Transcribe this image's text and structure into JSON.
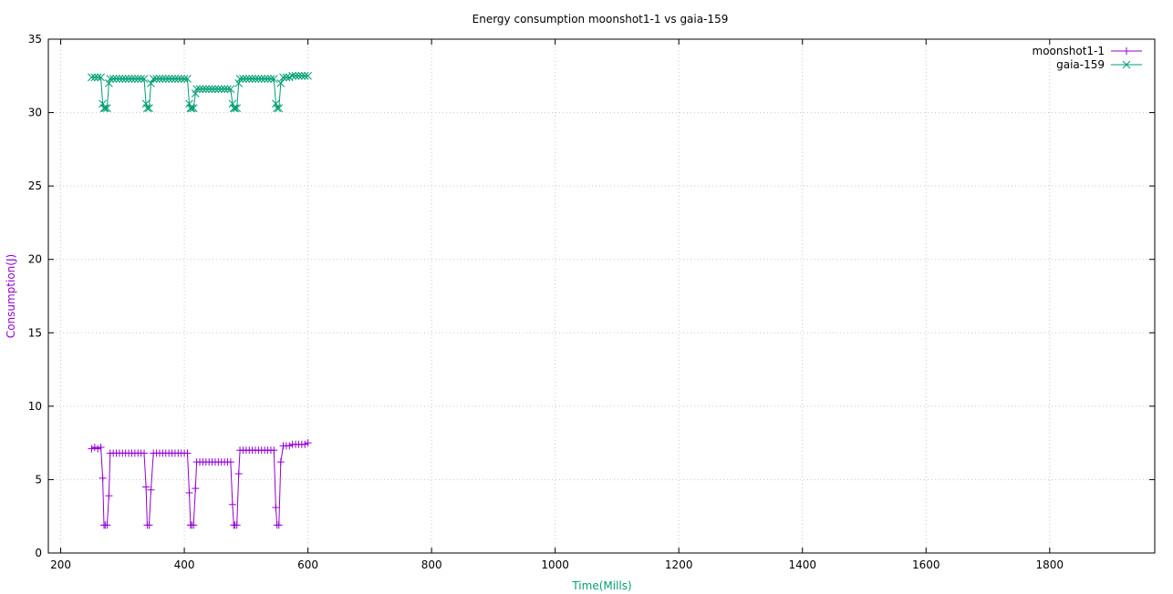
{
  "chart_data": {
    "type": "line",
    "title": "Energy consumption moonshot1-1 vs gaia-159",
    "xlabel": "Time(Mills)",
    "ylabel": "Consumption(J)",
    "xlim": [
      180,
      1970
    ],
    "ylim": [
      0,
      35
    ],
    "x_ticks": [
      200,
      400,
      600,
      800,
      1000,
      1200,
      1400,
      1600,
      1800
    ],
    "y_ticks": [
      0,
      5,
      10,
      15,
      20,
      25,
      30,
      35
    ],
    "grid": true,
    "legend_position": "top-right",
    "xlabel_color": "#009e73",
    "ylabel_color": "#9400d3",
    "series": [
      {
        "name": "moonshot1-1",
        "color": "#9400d3",
        "marker": "plus",
        "x": [
          250,
          255,
          260,
          265,
          268,
          270,
          272,
          275,
          278,
          280,
          285,
          290,
          295,
          300,
          305,
          310,
          315,
          320,
          325,
          330,
          335,
          338,
          340,
          343,
          346,
          350,
          355,
          360,
          365,
          370,
          375,
          380,
          385,
          390,
          395,
          400,
          405,
          408,
          410,
          412,
          415,
          418,
          420,
          425,
          430,
          435,
          440,
          445,
          450,
          455,
          460,
          465,
          470,
          475,
          478,
          480,
          482,
          485,
          488,
          490,
          495,
          500,
          505,
          510,
          515,
          520,
          525,
          530,
          535,
          540,
          545,
          548,
          550,
          553,
          556,
          560,
          565,
          570,
          575,
          580,
          585,
          590,
          595,
          600
        ],
        "y": [
          7.1,
          7.2,
          7.1,
          7.2,
          5.1,
          1.9,
          1.9,
          1.9,
          3.9,
          6.8,
          6.8,
          6.8,
          6.8,
          6.8,
          6.8,
          6.8,
          6.8,
          6.8,
          6.8,
          6.8,
          6.8,
          4.5,
          1.9,
          1.9,
          4.3,
          6.8,
          6.8,
          6.8,
          6.8,
          6.8,
          6.8,
          6.8,
          6.8,
          6.8,
          6.8,
          6.8,
          6.8,
          4.1,
          1.9,
          1.9,
          1.9,
          4.4,
          6.2,
          6.2,
          6.2,
          6.2,
          6.2,
          6.2,
          6.2,
          6.2,
          6.2,
          6.2,
          6.2,
          6.2,
          3.3,
          1.9,
          1.9,
          1.9,
          5.4,
          7.0,
          7.0,
          7.0,
          7.0,
          7.0,
          7.0,
          7.0,
          7.0,
          7.0,
          7.0,
          7.0,
          7.0,
          3.1,
          1.9,
          1.9,
          6.2,
          7.3,
          7.3,
          7.3,
          7.4,
          7.4,
          7.4,
          7.4,
          7.4,
          7.5
        ]
      },
      {
        "name": "gaia-159",
        "color": "#009e73",
        "marker": "x",
        "x": [
          250,
          255,
          260,
          265,
          268,
          270,
          272,
          275,
          278,
          280,
          285,
          290,
          295,
          300,
          305,
          310,
          315,
          320,
          325,
          330,
          335,
          338,
          340,
          343,
          346,
          350,
          355,
          360,
          365,
          370,
          375,
          380,
          385,
          390,
          395,
          400,
          405,
          408,
          410,
          412,
          415,
          418,
          420,
          425,
          430,
          435,
          440,
          445,
          450,
          455,
          460,
          465,
          470,
          475,
          478,
          480,
          482,
          485,
          488,
          490,
          495,
          500,
          505,
          510,
          515,
          520,
          525,
          530,
          535,
          540,
          545,
          548,
          550,
          553,
          556,
          560,
          565,
          570,
          575,
          580,
          585,
          590,
          595,
          600
        ],
        "y": [
          32.4,
          32.4,
          32.4,
          32.4,
          30.6,
          30.3,
          30.3,
          30.3,
          32.0,
          32.3,
          32.3,
          32.3,
          32.3,
          32.3,
          32.3,
          32.3,
          32.3,
          32.3,
          32.3,
          32.3,
          32.3,
          30.6,
          30.3,
          30.3,
          32.0,
          32.3,
          32.3,
          32.3,
          32.3,
          32.3,
          32.3,
          32.3,
          32.3,
          32.3,
          32.3,
          32.3,
          32.3,
          30.6,
          30.3,
          30.3,
          30.3,
          31.3,
          31.6,
          31.6,
          31.6,
          31.6,
          31.6,
          31.6,
          31.6,
          31.6,
          31.6,
          31.6,
          31.6,
          31.6,
          30.6,
          30.3,
          30.3,
          30.3,
          32.0,
          32.3,
          32.3,
          32.3,
          32.3,
          32.3,
          32.3,
          32.3,
          32.3,
          32.3,
          32.3,
          32.3,
          32.3,
          30.6,
          30.3,
          30.3,
          32.0,
          32.4,
          32.4,
          32.4,
          32.5,
          32.5,
          32.5,
          32.5,
          32.5,
          32.5
        ]
      }
    ]
  }
}
